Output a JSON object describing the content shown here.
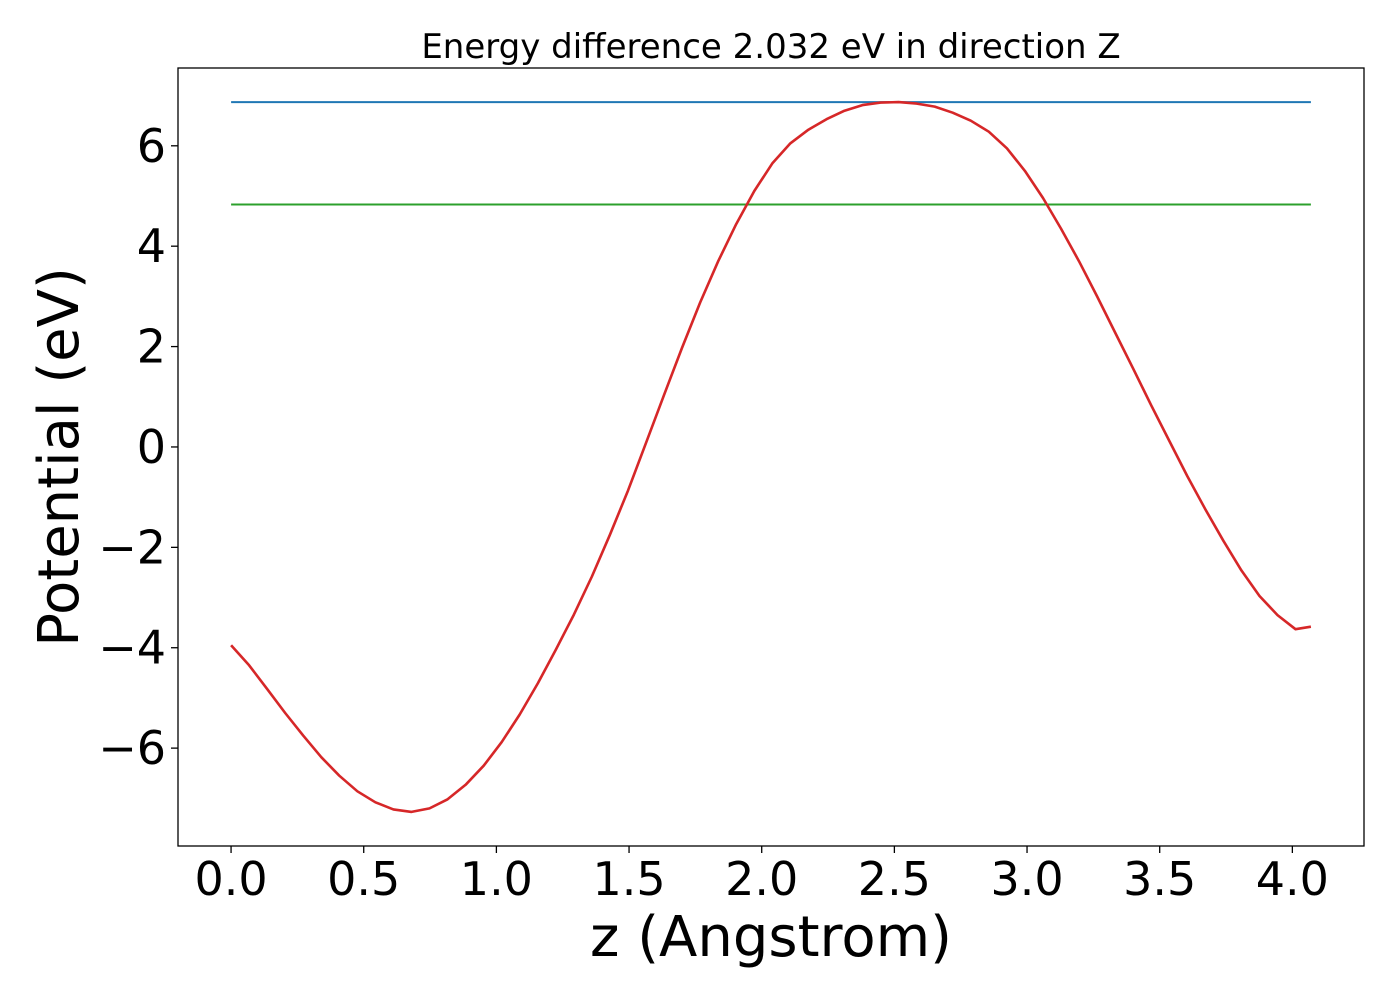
{
  "chart_data": {
    "type": "line",
    "title": "Energy difference 2.032 eV in direction Z",
    "xlabel": "z (Angstrom)",
    "ylabel": "Potential (eV)",
    "xlim": [
      -0.2,
      4.27
    ],
    "ylim": [
      -7.95,
      7.55
    ],
    "x_ticks": [
      0.0,
      0.5,
      1.0,
      1.5,
      2.0,
      2.5,
      3.0,
      3.5,
      4.0
    ],
    "x_tick_labels": [
      "0.0",
      "0.5",
      "1.0",
      "1.5",
      "2.0",
      "2.5",
      "3.0",
      "3.5",
      "4.0"
    ],
    "y_ticks": [
      -6,
      -4,
      -2,
      0,
      2,
      4,
      6
    ],
    "y_tick_labels": [
      "−6",
      "−4",
      "−2",
      "0",
      "2",
      "4",
      "6"
    ],
    "grid": false,
    "series": [
      {
        "color": "#d62728",
        "x": [
          0.0,
          0.068,
          0.136,
          0.204,
          0.272,
          0.34,
          0.408,
          0.476,
          0.544,
          0.612,
          0.68,
          0.748,
          0.816,
          0.884,
          0.952,
          1.02,
          1.088,
          1.156,
          1.224,
          1.292,
          1.36,
          1.428,
          1.496,
          1.564,
          1.632,
          1.7,
          1.768,
          1.836,
          1.904,
          1.972,
          2.04,
          2.108,
          2.176,
          2.244,
          2.312,
          2.38,
          2.448,
          2.516,
          2.584,
          2.652,
          2.72,
          2.788,
          2.856,
          2.924,
          2.992,
          3.06,
          3.128,
          3.196,
          3.264,
          3.332,
          3.4,
          3.468,
          3.536,
          3.604,
          3.672,
          3.74,
          3.808,
          3.876,
          3.944,
          4.012,
          4.07
        ],
        "values": [
          -3.95,
          -4.35,
          -4.82,
          -5.3,
          -5.75,
          -6.18,
          -6.55,
          -6.86,
          -7.08,
          -7.22,
          -7.27,
          -7.2,
          -7.02,
          -6.73,
          -6.35,
          -5.88,
          -5.33,
          -4.71,
          -4.04,
          -3.34,
          -2.58,
          -1.75,
          -0.87,
          0.08,
          1.04,
          1.98,
          2.88,
          3.7,
          4.44,
          5.1,
          5.65,
          6.05,
          6.32,
          6.53,
          6.7,
          6.81,
          6.86,
          6.87,
          6.84,
          6.78,
          6.66,
          6.5,
          6.28,
          5.95,
          5.5,
          4.96,
          4.35,
          3.7,
          3.0,
          2.28,
          1.56,
          0.83,
          0.12,
          -0.58,
          -1.24,
          -1.87,
          -2.46,
          -2.97,
          -3.35,
          -3.63,
          -3.58
        ]
      },
      {
        "color": "#1f77b4",
        "x": [
          0.0,
          4.07
        ],
        "values": [
          6.87,
          6.87
        ]
      },
      {
        "color": "#2ca02c",
        "x": [
          0.0,
          4.07
        ],
        "values": [
          4.83,
          4.83
        ]
      }
    ]
  }
}
